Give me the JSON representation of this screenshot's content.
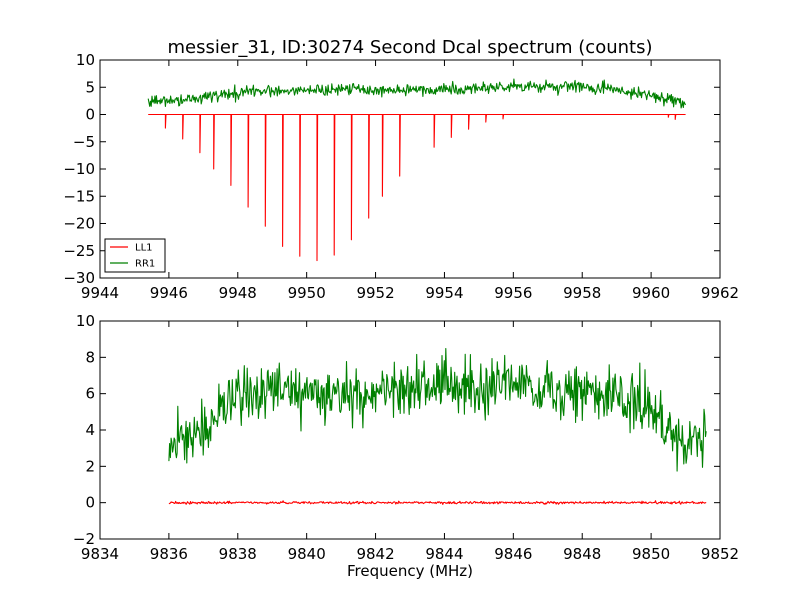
{
  "chart_data": [
    {
      "type": "line",
      "title": "messier_31, ID:30274 Second Dcal spectrum (counts)",
      "xlabel": "",
      "ylabel": "",
      "xlim": [
        9944,
        9962
      ],
      "ylim": [
        -30,
        10
      ],
      "xticks": [
        9944,
        9946,
        9948,
        9950,
        9952,
        9954,
        9956,
        9958,
        9960,
        9962
      ],
      "yticks": [
        -30,
        -25,
        -20,
        -15,
        -10,
        -5,
        0,
        5,
        10
      ],
      "legend": "lower-left",
      "grid": false,
      "series": [
        {
          "name": "LL1",
          "color": "#ff0000",
          "x_range": [
            9945.4,
            9961.0
          ],
          "baseline": 0,
          "dips": [
            [
              9945.9,
              -2.5
            ],
            [
              9946.4,
              -4.5
            ],
            [
              9946.9,
              -7.0
            ],
            [
              9947.3,
              -10.0
            ],
            [
              9947.8,
              -13.0
            ],
            [
              9948.3,
              -17.0
            ],
            [
              9948.8,
              -20.5
            ],
            [
              9949.3,
              -24.2
            ],
            [
              9949.8,
              -26.0
            ],
            [
              9950.3,
              -26.8
            ],
            [
              9950.8,
              -25.8
            ],
            [
              9951.3,
              -23.0
            ],
            [
              9951.8,
              -19.0
            ],
            [
              9952.2,
              -15.0
            ],
            [
              9952.7,
              -11.3
            ],
            [
              9953.7,
              -6.0
            ],
            [
              9954.2,
              -4.2
            ],
            [
              9954.7,
              -2.7
            ],
            [
              9955.2,
              -1.4
            ],
            [
              9955.7,
              -0.8
            ],
            [
              9960.5,
              -0.5
            ],
            [
              9960.7,
              -0.9
            ]
          ]
        },
        {
          "name": "RR1",
          "color": "#008000",
          "x_range": [
            9945.4,
            9961.0
          ],
          "envelope": [
            [
              9945.4,
              2.3
            ],
            [
              9946.5,
              2.8
            ],
            [
              9947.5,
              3.6
            ],
            [
              9948.5,
              4.2
            ],
            [
              9950.0,
              4.6
            ],
            [
              9952.0,
              4.5
            ],
            [
              9954.0,
              4.6
            ],
            [
              9956.0,
              5.1
            ],
            [
              9958.0,
              5.1
            ],
            [
              9959.0,
              4.6
            ],
            [
              9960.0,
              3.3
            ],
            [
              9961.0,
              2.0
            ]
          ],
          "noise": 0.8
        }
      ]
    },
    {
      "type": "line",
      "title": "",
      "xlabel": "Frequency (MHz)",
      "ylabel": "",
      "xlim": [
        9834,
        9852
      ],
      "ylim": [
        -2,
        10
      ],
      "xticks": [
        9834,
        9836,
        9838,
        9840,
        9842,
        9844,
        9846,
        9848,
        9850,
        9852
      ],
      "yticks": [
        -2,
        0,
        2,
        4,
        6,
        8,
        10
      ],
      "legend": "none",
      "grid": false,
      "series": [
        {
          "name": "LL1",
          "color": "#ff0000",
          "x_range": [
            9836.0,
            9851.6
          ],
          "baseline": 0,
          "noise": 0.05
        },
        {
          "name": "RR1",
          "color": "#008000",
          "x_range": [
            9836.0,
            9851.6
          ],
          "envelope": [
            [
              9836.0,
              3.0
            ],
            [
              9837.0,
              4.2
            ],
            [
              9838.0,
              5.8
            ],
            [
              9839.0,
              6.4
            ],
            [
              9840.0,
              6.1
            ],
            [
              9841.0,
              6.0
            ],
            [
              9842.0,
              6.0
            ],
            [
              9843.0,
              6.3
            ],
            [
              9844.0,
              6.4
            ],
            [
              9845.0,
              6.4
            ],
            [
              9846.0,
              6.5
            ],
            [
              9847.0,
              6.2
            ],
            [
              9848.0,
              6.0
            ],
            [
              9849.0,
              5.9
            ],
            [
              9850.0,
              5.0
            ],
            [
              9851.0,
              3.4
            ],
            [
              9851.6,
              3.6
            ]
          ],
          "noise": 1.1
        }
      ]
    }
  ]
}
